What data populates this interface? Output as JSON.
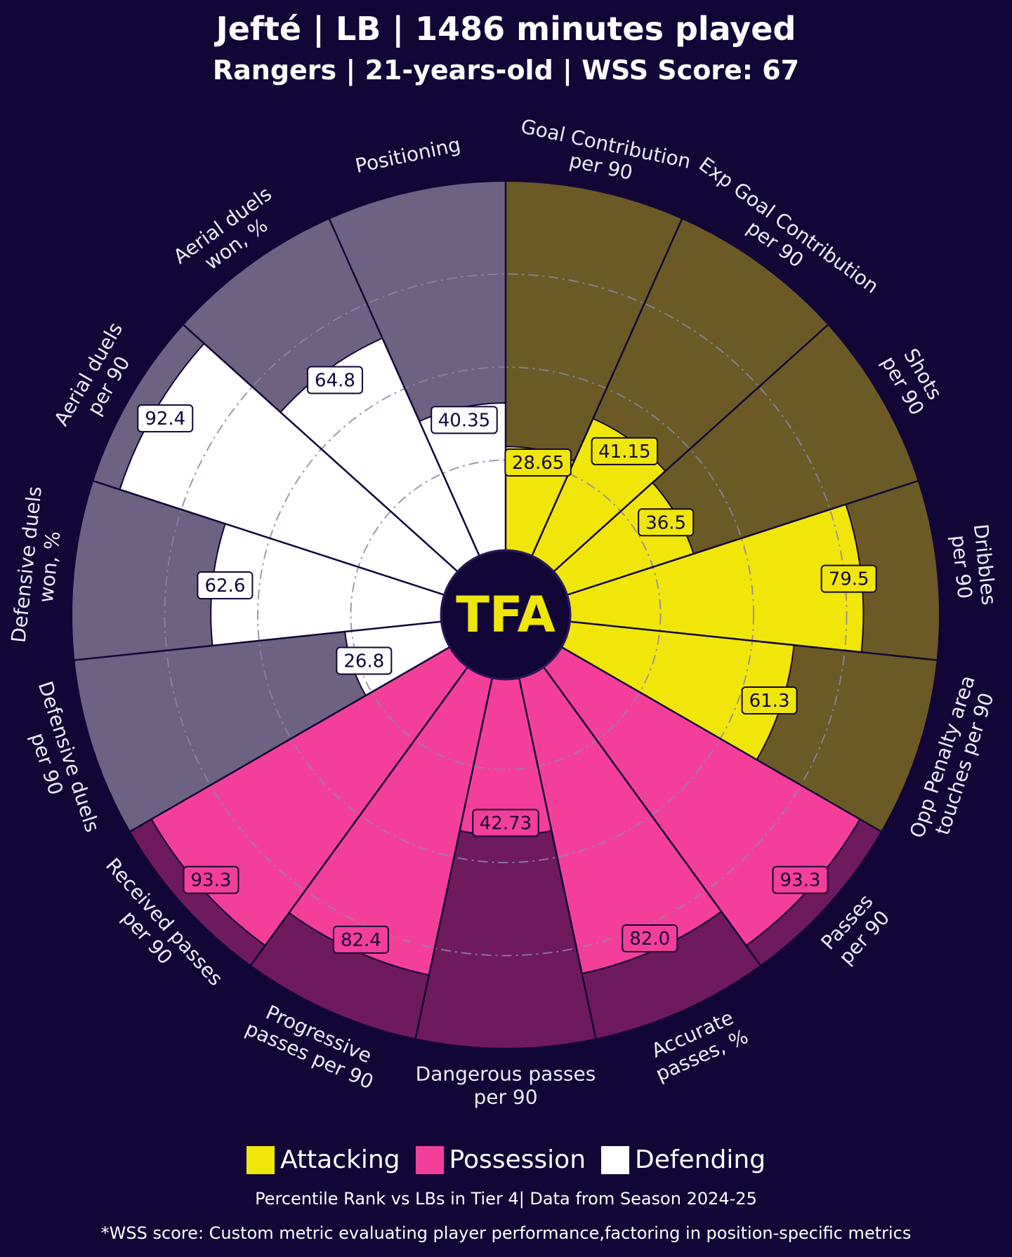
{
  "header": {
    "title": "Jefté | LB | 1486 minutes played",
    "subtitle": "Rangers | 21-years-old | WSS Score: 67"
  },
  "logo": {
    "text": "TFA"
  },
  "colors": {
    "background": "#120637",
    "attacking": "#F0E60A",
    "attacking_bg": "#6B5A26",
    "possession": "#F43F9A",
    "possession_bg": "#6E1A5C",
    "defending": "#FFFFFF",
    "defending_bg": "#6E6282"
  },
  "legend": [
    {
      "label": "Attacking",
      "color": "#F0E60A"
    },
    {
      "label": "Possession",
      "color": "#F43F9A"
    },
    {
      "label": "Defending",
      "color": "#FFFFFF"
    }
  ],
  "footer": {
    "note": "Percentile Rank vs LBs in Tier 4| Data from Season 2024-25",
    "footnote": "*WSS score: Custom metric evaluating player performance,factoring in position-specific metrics"
  },
  "chart_data": {
    "type": "pizza",
    "title": "Jefté | LB | 1486 minutes played",
    "subtitle": "Rangers | 21-years-old | WSS Score: 67",
    "value_range": [
      0,
      100
    ],
    "gridlines": [
      25,
      50,
      75
    ],
    "segments": [
      {
        "label": [
          "Goal Contribution",
          "per 90"
        ],
        "value": 28.65,
        "value_label": "28.65",
        "group": "Attacking"
      },
      {
        "label": [
          "Exp Goal Contribution",
          "per 90"
        ],
        "value": 41.15,
        "value_label": "41.15",
        "group": "Attacking"
      },
      {
        "label": [
          "Shots",
          "per 90"
        ],
        "value": 36.5,
        "value_label": "36.5",
        "group": "Attacking"
      },
      {
        "label": [
          "Dribbles",
          "per 90"
        ],
        "value": 79.5,
        "value_label": "79.5",
        "group": "Attacking"
      },
      {
        "label": [
          "Opp Penalty area",
          "touches per 90"
        ],
        "value": 61.3,
        "value_label": "61.3",
        "group": "Attacking"
      },
      {
        "label": [
          "Passes",
          "per 90"
        ],
        "value": 93.3,
        "value_label": "93.3",
        "group": "Possession"
      },
      {
        "label": [
          "Accurate",
          "passes, %"
        ],
        "value": 82.0,
        "value_label": "82.0",
        "group": "Possession"
      },
      {
        "label": [
          "Dangerous passes",
          "per 90"
        ],
        "value": 42.73,
        "value_label": "42.73",
        "group": "Possession"
      },
      {
        "label": [
          "Progressive",
          "passes per 90"
        ],
        "value": 82.4,
        "value_label": "82.4",
        "group": "Possession"
      },
      {
        "label": [
          "Received passes",
          "per 90"
        ],
        "value": 93.3,
        "value_label": "93.3",
        "group": "Possession"
      },
      {
        "label": [
          "Defensive duels",
          "per 90"
        ],
        "value": 26.8,
        "value_label": "26.8",
        "group": "Defending"
      },
      {
        "label": [
          "Defensive duels",
          "won, %"
        ],
        "value": 62.6,
        "value_label": "62.6",
        "group": "Defending"
      },
      {
        "label": [
          "Aerial duels",
          "per 90"
        ],
        "value": 92.4,
        "value_label": "92.4",
        "group": "Defending"
      },
      {
        "label": [
          "Aerial duels",
          "won, %"
        ],
        "value": 64.8,
        "value_label": "64.8",
        "group": "Defending"
      },
      {
        "label": [
          "Positioning"
        ],
        "value": 40.35,
        "value_label": "40.35",
        "group": "Defending"
      }
    ]
  }
}
